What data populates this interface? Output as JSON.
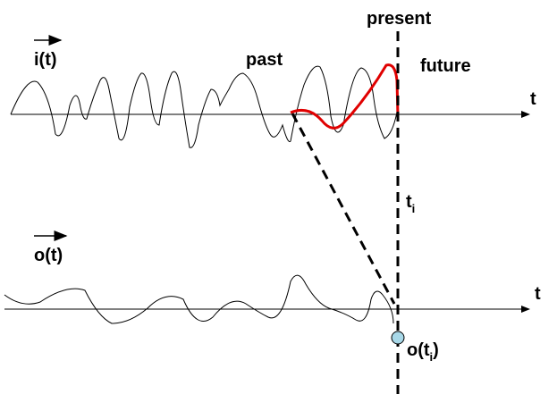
{
  "labels": {
    "present": "present",
    "past": "past",
    "future": "future",
    "input_signal": "i(t)",
    "output_signal": "o(t)",
    "time_axis_top": "t",
    "time_axis_bottom": "t",
    "instant": {
      "base": "t",
      "sub": "i"
    },
    "output_at_instant": {
      "base": "o(t",
      "sub": "i",
      "close": ")"
    }
  }
}
